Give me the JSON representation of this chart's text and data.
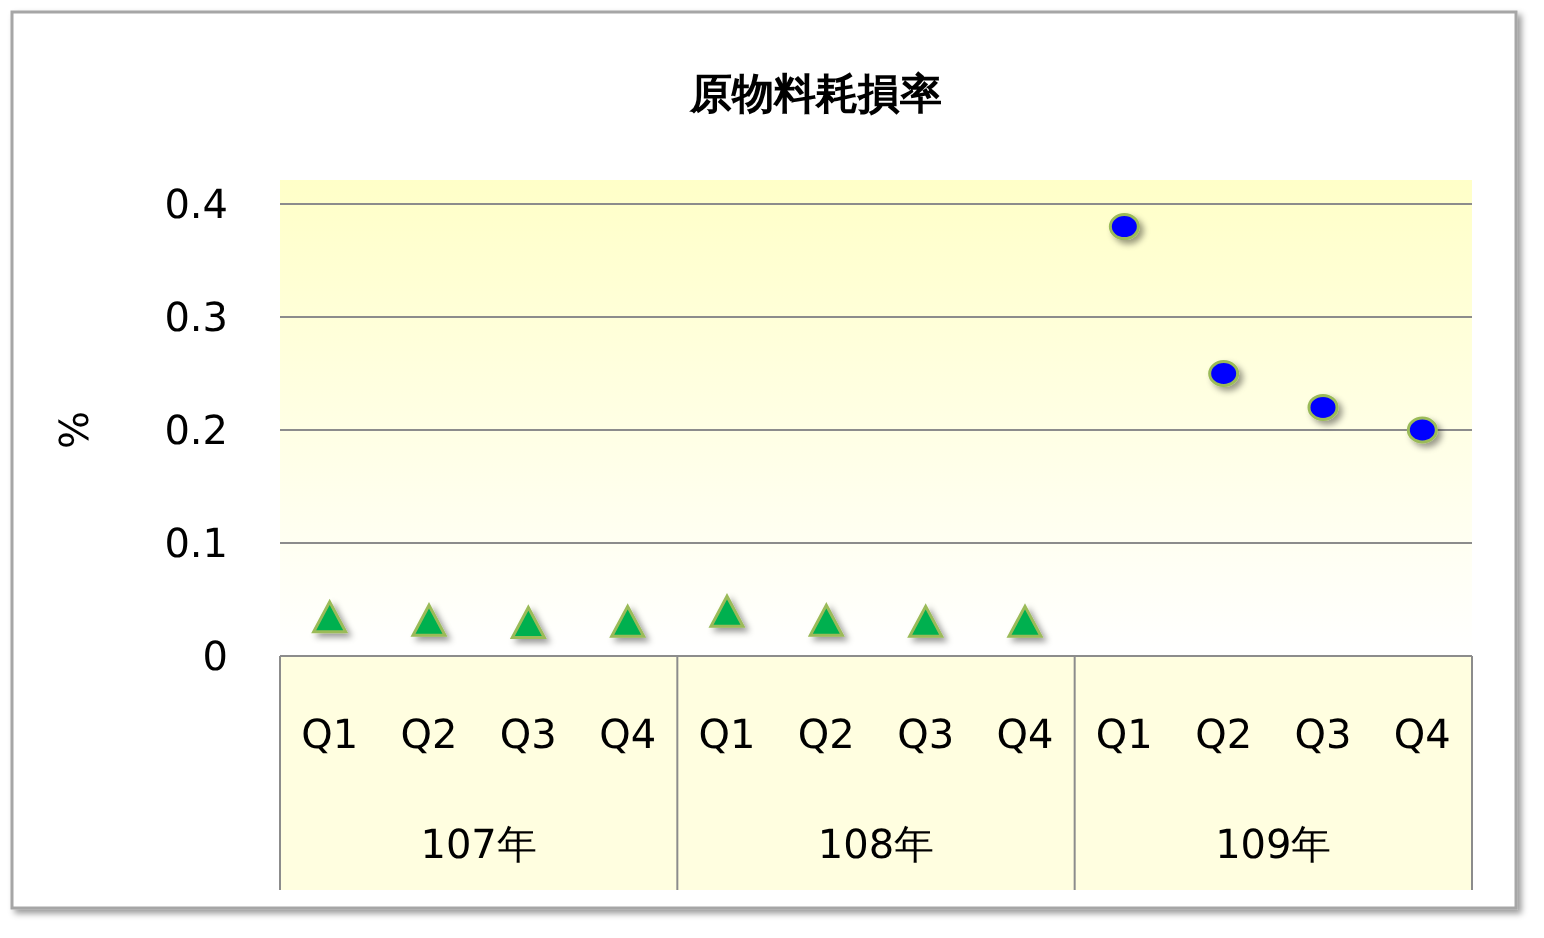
{
  "chart_data": {
    "type": "scatter",
    "title": "原物料耗損率",
    "ylabel": "%",
    "categories": [
      "Q1",
      "Q2",
      "Q3",
      "Q4",
      "Q1",
      "Q2",
      "Q3",
      "Q4",
      "Q1",
      "Q2",
      "Q3",
      "Q4"
    ],
    "annotations": [
      "107年",
      "108年",
      "109年"
    ],
    "series": [
      {
        "color": "#00b050",
        "marker": "triangle",
        "values": [
          0.032,
          0.029,
          0.027,
          0.028,
          0.037,
          0.029,
          0.028,
          0.028,
          null,
          null,
          null,
          null
        ]
      },
      {
        "color": "#0000ff",
        "marker": "circle",
        "values": [
          null,
          null,
          null,
          null,
          null,
          null,
          null,
          null,
          0.38,
          0.25,
          0.22,
          0.2
        ]
      }
    ],
    "ylim": [
      0,
      0.4
    ],
    "yticks": [
      0,
      0.1,
      0.2,
      0.3,
      0.4
    ],
    "grid": "y"
  }
}
